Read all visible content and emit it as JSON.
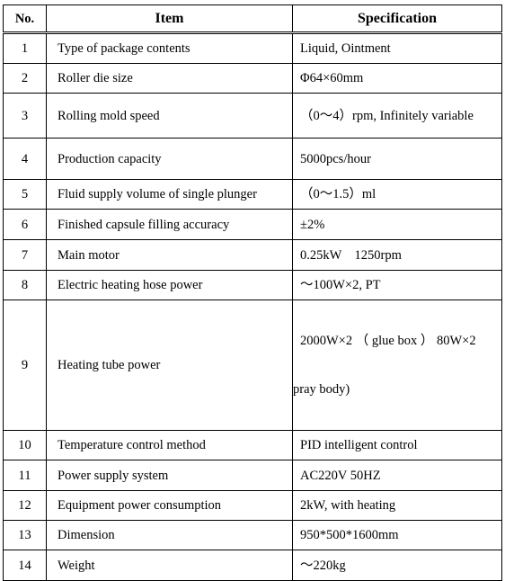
{
  "table": {
    "headers": {
      "no": "No.",
      "item": "Item",
      "spec": "Specification"
    },
    "rows": [
      {
        "no": "1",
        "item": "Type of package contents",
        "spec": "Liquid, Ointment"
      },
      {
        "no": "2",
        "item": "Roller die size",
        "spec": "Φ64×60mm"
      },
      {
        "no": "3",
        "item": "Rolling mold speed",
        "spec": "（0～4）rpm, Infinitely variable"
      },
      {
        "no": "4",
        "item": "Production capacity",
        "spec": "5000pcs/hour"
      },
      {
        "no": "5",
        "item": "Fluid supply volume of single plunger",
        "spec": "（0～1.5）ml"
      },
      {
        "no": "6",
        "item": "Finished capsule filling accuracy",
        "spec": "±2%"
      },
      {
        "no": "7",
        "item": "Main motor",
        "spec": "0.25kW    1250rpm"
      },
      {
        "no": "8",
        "item": "Electric heating hose power",
        "spec": "～100W×2, PT"
      },
      {
        "no": "9",
        "item": "Heating tube power",
        "spec": "2000W×2 （ glue box ） 80W×2",
        "spec_cont": "pray body)"
      },
      {
        "no": "10",
        "item": "Temperature control method",
        "spec": "PID intelligent control"
      },
      {
        "no": "11",
        "item": "Power supply system",
        "spec": "AC220V 50HZ"
      },
      {
        "no": "12",
        "item": "Equipment power consumption",
        "spec": "2kW, with heating"
      },
      {
        "no": "13",
        "item": "Dimension",
        "spec": "950*500*1600mm"
      },
      {
        "no": "14",
        "item": "Weight",
        "spec": "～220kg"
      }
    ]
  }
}
